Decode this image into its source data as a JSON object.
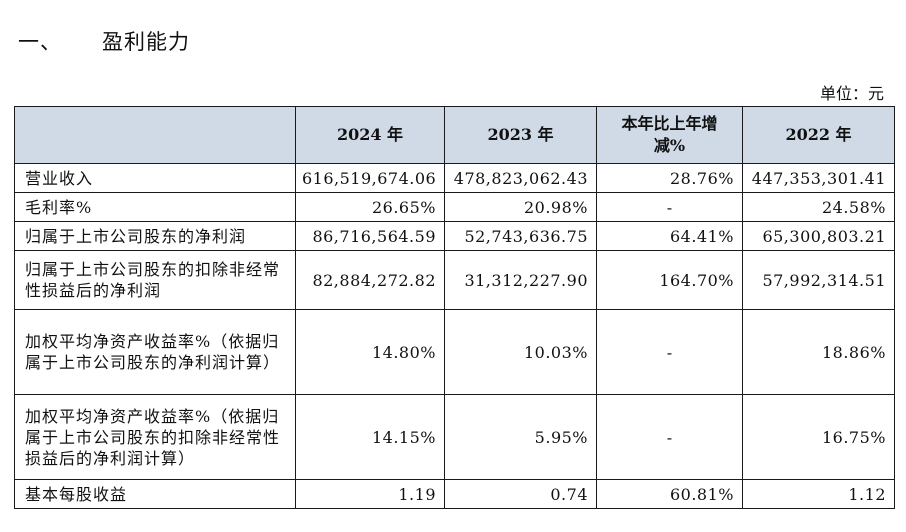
{
  "heading": {
    "number": "一、",
    "title": "盈利能力"
  },
  "unit_label": "单位：元",
  "table": {
    "headers": [
      "",
      "2024 年",
      "2023 年",
      "本年比上年增减%",
      "2022 年"
    ],
    "rows": [
      {
        "label": "营业收入",
        "values": [
          "616,519,674.06",
          "478,823,062.43",
          "28.76%",
          "447,353,301.41"
        ]
      },
      {
        "label": "毛利率%",
        "values": [
          "26.65%",
          "20.98%",
          "-",
          "24.58%"
        ]
      },
      {
        "label": "归属于上市公司股东的净利润",
        "values": [
          "86,716,564.59",
          "52,743,636.75",
          "64.41%",
          "65,300,803.21"
        ]
      },
      {
        "label": "归属于上市公司股东的扣除非经常性损益后的净利润",
        "values": [
          "82,884,272.82",
          "31,312,227.90",
          "164.70%",
          "57,992,314.51"
        ]
      },
      {
        "label": "加权平均净资产收益率%（依据归属于上市公司股东的净利润计算）",
        "values": [
          "14.80%",
          "10.03%",
          "-",
          "18.86%"
        ]
      },
      {
        "label": "加权平均净资产收益率%（依据归属于上市公司股东的扣除非经常性损益后的净利润计算）",
        "values": [
          "14.15%",
          "5.95%",
          "-",
          "16.75%"
        ]
      },
      {
        "label": "基本每股收益",
        "values": [
          "1.19",
          "0.74",
          "60.81%",
          "1.12"
        ]
      }
    ]
  }
}
